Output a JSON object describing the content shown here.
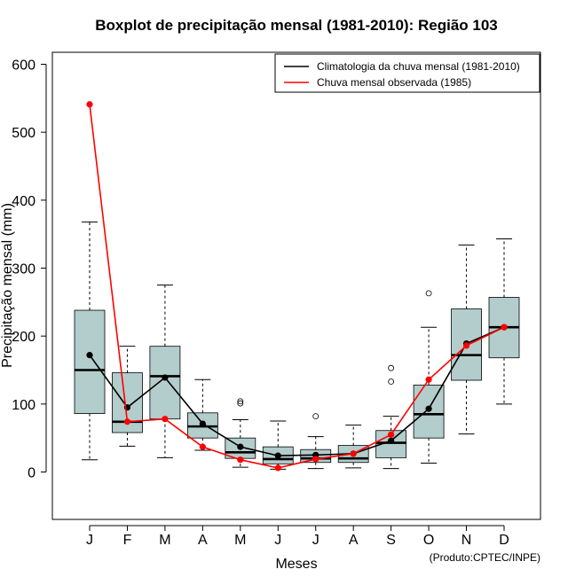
{
  "chart_data": {
    "type": "boxplot",
    "title": "Boxplot de precipitação mensal (1981-2010): Região 103",
    "xlabel": "Meses",
    "ylabel": "Precipitação mensal (mm)",
    "ylim": [
      -70,
      620
    ],
    "yticks": [
      0,
      100,
      200,
      300,
      400,
      500,
      600
    ],
    "categories": [
      "J",
      "F",
      "M",
      "A",
      "M",
      "J",
      "J",
      "A",
      "S",
      "O",
      "N",
      "D"
    ],
    "boxes": [
      {
        "whisker_low": 18,
        "q1": 86,
        "median": 150,
        "q3": 238,
        "whisker_high": 368,
        "outliers": []
      },
      {
        "whisker_low": 38,
        "q1": 58,
        "median": 74,
        "q3": 146,
        "whisker_high": 185,
        "outliers": []
      },
      {
        "whisker_low": 21,
        "q1": 78,
        "median": 141,
        "q3": 185,
        "whisker_high": 275,
        "outliers": []
      },
      {
        "whisker_low": 32,
        "q1": 50,
        "median": 67,
        "q3": 87,
        "whisker_high": 136,
        "outliers": []
      },
      {
        "whisker_low": 7,
        "q1": 20,
        "median": 29,
        "q3": 50,
        "whisker_high": 77,
        "outliers": [
          101,
          104
        ]
      },
      {
        "whisker_low": 4,
        "q1": 12,
        "median": 19,
        "q3": 37,
        "whisker_high": 75,
        "outliers": []
      },
      {
        "whisker_low": 5,
        "q1": 14,
        "median": 20,
        "q3": 33,
        "whisker_high": 52,
        "outliers": [
          82
        ]
      },
      {
        "whisker_low": 6,
        "q1": 14,
        "median": 20,
        "q3": 39,
        "whisker_high": 69,
        "outliers": []
      },
      {
        "whisker_low": 5,
        "q1": 21,
        "median": 43,
        "q3": 61,
        "whisker_high": 82,
        "outliers": [
          133,
          153
        ]
      },
      {
        "whisker_low": 13,
        "q1": 50,
        "median": 85,
        "q3": 128,
        "whisker_high": 213,
        "outliers": [
          263
        ]
      },
      {
        "whisker_low": 56,
        "q1": 135,
        "median": 172,
        "q3": 240,
        "whisker_high": 334,
        "outliers": []
      },
      {
        "whisker_low": 100,
        "q1": 168,
        "median": 213,
        "q3": 257,
        "whisker_high": 343,
        "outliers": []
      }
    ],
    "series": [
      {
        "name": "Climatologia da chuva mensal (1981-2010)",
        "color": "#000000",
        "values": [
          172,
          95,
          139,
          71,
          37,
          24,
          25,
          27,
          46,
          93,
          189,
          213
        ]
      },
      {
        "name": "Chuva mensal observada (1985)",
        "color": "#ff0000",
        "values": [
          541,
          74,
          78,
          37,
          18,
          6,
          19,
          27,
          55,
          136,
          186,
          213
        ]
      }
    ],
    "box_fill": "#b3cccc",
    "legend_position": "top-right",
    "credit": "(Produto:CPTEC/INPE)"
  }
}
